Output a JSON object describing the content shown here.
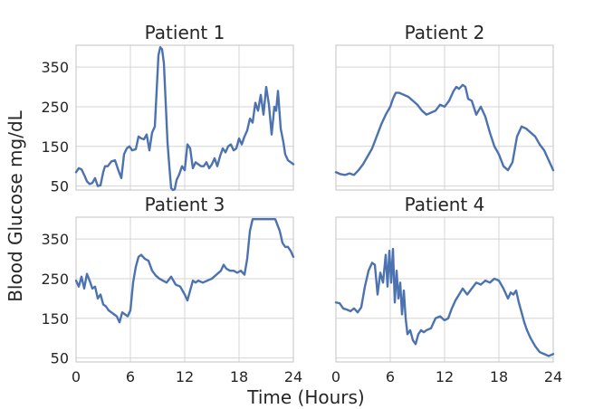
{
  "figure": {
    "ylabel": "Blood Glucose mg/dL",
    "xlabel": "Time (Hours)"
  },
  "colors": {
    "line": "#4c72b0",
    "grid": "#d4d4d4",
    "frame": "#c8c8c8"
  },
  "chart_data": [
    {
      "type": "line",
      "title": "Patient 1",
      "xlim": [
        0,
        24
      ],
      "ylim": [
        40,
        405
      ],
      "xticks": [
        0,
        6,
        12,
        18,
        24
      ],
      "yticks": [
        50,
        150,
        250,
        350
      ],
      "x_tick_labels_visible": false,
      "y_tick_labels_visible": true,
      "grid": true,
      "x": [
        0,
        0.3,
        0.6,
        0.9,
        1.2,
        1.5,
        1.8,
        2.1,
        2.4,
        2.7,
        3.0,
        3.2,
        3.5,
        3.9,
        4.3,
        4.7,
        5.0,
        5.3,
        5.6,
        5.9,
        6.2,
        6.6,
        6.9,
        7.2,
        7.5,
        7.8,
        8.1,
        8.4,
        8.7,
        8.9,
        9.1,
        9.3,
        9.5,
        9.7,
        9.9,
        10.1,
        10.3,
        10.5,
        10.7,
        10.9,
        11.1,
        11.4,
        11.7,
        12.0,
        12.3,
        12.6,
        12.9,
        13.2,
        13.5,
        13.8,
        14.1,
        14.4,
        14.7,
        15.0,
        15.3,
        15.6,
        15.9,
        16.2,
        16.5,
        16.8,
        17.1,
        17.4,
        17.7,
        18.0,
        18.3,
        18.6,
        18.9,
        19.2,
        19.5,
        19.8,
        20.1,
        20.4,
        20.7,
        21.0,
        21.3,
        21.6,
        21.9,
        22.1,
        22.3,
        22.6,
        22.9,
        23.1,
        23.4,
        23.7,
        24.0
      ],
      "y": [
        85,
        95,
        92,
        78,
        62,
        55,
        58,
        70,
        50,
        52,
        85,
        100,
        100,
        112,
        115,
        88,
        70,
        130,
        145,
        150,
        140,
        143,
        175,
        170,
        168,
        180,
        140,
        185,
        200,
        290,
        380,
        400,
        395,
        360,
        260,
        160,
        100,
        45,
        40,
        42,
        65,
        80,
        100,
        90,
        155,
        145,
        95,
        110,
        105,
        100,
        100,
        110,
        95,
        105,
        120,
        100,
        125,
        145,
        135,
        150,
        155,
        140,
        145,
        170,
        155,
        175,
        190,
        220,
        210,
        260,
        240,
        280,
        230,
        300,
        255,
        180,
        250,
        240,
        290,
        195,
        160,
        130,
        115,
        110,
        105
      ]
    },
    {
      "type": "line",
      "title": "Patient 2",
      "xlim": [
        0,
        24
      ],
      "ylim": [
        40,
        405
      ],
      "xticks": [
        0,
        6,
        12,
        18,
        24
      ],
      "yticks": [
        50,
        150,
        250,
        350
      ],
      "x_tick_labels_visible": false,
      "y_tick_labels_visible": false,
      "grid": true,
      "x": [
        0,
        0.5,
        1.0,
        1.5,
        2.0,
        2.5,
        3.0,
        3.5,
        4.0,
        4.5,
        5.0,
        5.5,
        6.0,
        6.3,
        6.6,
        7.0,
        7.5,
        8.0,
        8.5,
        9.0,
        9.5,
        10.0,
        10.5,
        11.0,
        11.5,
        12.0,
        12.5,
        13.0,
        13.3,
        13.6,
        14.0,
        14.3,
        14.6,
        15.0,
        15.5,
        16.0,
        16.5,
        17.0,
        17.5,
        18.0,
        18.5,
        19.0,
        19.5,
        20.0,
        20.5,
        21.0,
        21.5,
        22.0,
        22.5,
        23.0,
        23.5,
        24.0
      ],
      "y": [
        85,
        80,
        78,
        82,
        78,
        90,
        105,
        125,
        145,
        175,
        205,
        230,
        250,
        270,
        285,
        285,
        280,
        275,
        265,
        255,
        240,
        230,
        235,
        240,
        255,
        250,
        265,
        290,
        300,
        295,
        305,
        300,
        270,
        265,
        230,
        250,
        225,
        185,
        150,
        130,
        100,
        90,
        110,
        175,
        200,
        195,
        185,
        175,
        155,
        140,
        115,
        90
      ]
    },
    {
      "type": "line",
      "title": "Patient 3",
      "xlim": [
        0,
        24
      ],
      "ylim": [
        40,
        405
      ],
      "xticks": [
        0,
        6,
        12,
        18,
        24
      ],
      "yticks": [
        50,
        150,
        250,
        350
      ],
      "x_tick_labels_visible": true,
      "y_tick_labels_visible": true,
      "grid": true,
      "x": [
        0,
        0.3,
        0.6,
        0.9,
        1.2,
        1.5,
        1.8,
        2.1,
        2.4,
        2.7,
        3.0,
        3.3,
        3.6,
        3.9,
        4.2,
        4.5,
        4.8,
        5.1,
        5.4,
        5.7,
        6.0,
        6.3,
        6.6,
        6.9,
        7.2,
        7.6,
        8.0,
        8.4,
        8.8,
        9.2,
        9.6,
        10.0,
        10.5,
        11.0,
        11.5,
        12.0,
        12.3,
        12.6,
        12.9,
        13.2,
        13.5,
        14.0,
        14.5,
        15.0,
        15.5,
        16.0,
        16.3,
        16.6,
        17.0,
        17.4,
        17.8,
        18.2,
        18.6,
        18.9,
        19.2,
        19.5,
        19.8,
        20.1,
        20.5,
        21.0,
        21.5,
        22.0,
        22.5,
        22.8,
        23.1,
        23.4,
        23.7,
        24.0
      ],
      "y": [
        245,
        230,
        255,
        225,
        262,
        245,
        225,
        230,
        200,
        210,
        185,
        180,
        170,
        165,
        160,
        155,
        140,
        165,
        160,
        155,
        170,
        240,
        280,
        305,
        310,
        300,
        295,
        270,
        258,
        250,
        245,
        240,
        255,
        235,
        230,
        210,
        195,
        220,
        245,
        240,
        245,
        240,
        245,
        250,
        260,
        270,
        285,
        275,
        270,
        270,
        265,
        270,
        260,
        300,
        370,
        400,
        400,
        400,
        400,
        400,
        400,
        400,
        370,
        340,
        330,
        330,
        320,
        305
      ]
    },
    {
      "type": "line",
      "title": "Patient 4",
      "xlim": [
        0,
        24
      ],
      "ylim": [
        40,
        405
      ],
      "xticks": [
        0,
        6,
        12,
        18,
        24
      ],
      "yticks": [
        50,
        150,
        250,
        350
      ],
      "x_tick_labels_visible": true,
      "y_tick_labels_visible": false,
      "grid": true,
      "x": [
        0,
        0.4,
        0.8,
        1.2,
        1.6,
        2.0,
        2.4,
        2.8,
        3.2,
        3.6,
        4.0,
        4.3,
        4.6,
        4.9,
        5.2,
        5.5,
        5.7,
        5.9,
        6.1,
        6.3,
        6.5,
        6.7,
        6.9,
        7.1,
        7.3,
        7.5,
        7.7,
        7.9,
        8.2,
        8.5,
        8.8,
        9.1,
        9.4,
        9.7,
        10.0,
        10.5,
        11.0,
        11.5,
        12.0,
        12.4,
        12.8,
        13.2,
        13.6,
        14.0,
        14.5,
        15.0,
        15.5,
        16.0,
        16.5,
        17.0,
        17.5,
        18.0,
        18.5,
        19.0,
        19.3,
        19.6,
        19.9,
        20.2,
        20.5,
        20.8,
        21.1,
        21.5,
        22.0,
        22.5,
        23.0,
        23.5,
        24.0
      ],
      "y": [
        190,
        188,
        175,
        172,
        168,
        175,
        165,
        178,
        230,
        270,
        290,
        285,
        210,
        265,
        240,
        310,
        230,
        320,
        240,
        325,
        190,
        270,
        200,
        240,
        160,
        220,
        150,
        110,
        120,
        95,
        85,
        110,
        120,
        115,
        120,
        125,
        150,
        155,
        145,
        150,
        175,
        195,
        210,
        225,
        210,
        225,
        240,
        235,
        245,
        240,
        250,
        245,
        225,
        200,
        215,
        210,
        220,
        190,
        165,
        140,
        120,
        100,
        80,
        65,
        60,
        55,
        60
      ]
    }
  ]
}
